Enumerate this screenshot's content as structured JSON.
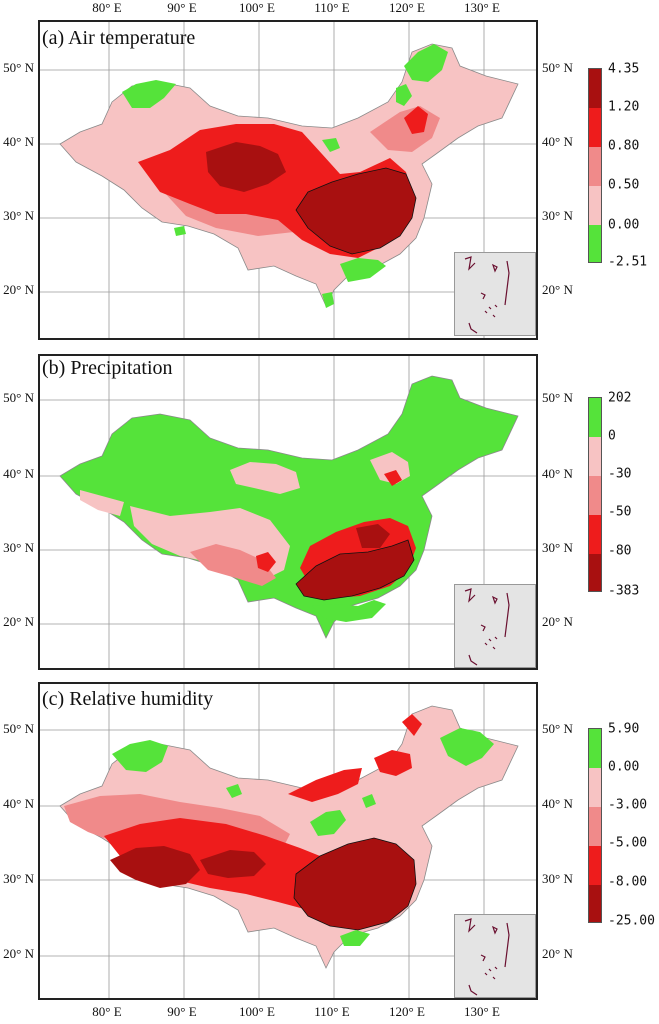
{
  "axes": {
    "lon_labels": [
      "80° E",
      "90° E",
      "100° E",
      "110° E",
      "120° E",
      "130° E"
    ],
    "lat_labels": [
      "50° N",
      "40° N",
      "30° N",
      "20° N"
    ]
  },
  "colors": {
    "green": "#55e33a",
    "light_pink": "#f7c3c3",
    "pink": "#f08a8a",
    "red": "#ee1c1c",
    "dark_red": "#a81010",
    "boundary": "#8a8a8a",
    "inset_bg": "#e4e4e4",
    "island": "#6a1030"
  },
  "panels": [
    {
      "title": "(a) Air temperature",
      "legend": [
        "4.35",
        "1.20",
        "0.80",
        "0.50",
        "0.00",
        "-2.51"
      ]
    },
    {
      "title": "(b) Precipitation",
      "legend": [
        "202",
        "0",
        "-30",
        "-50",
        "-80",
        "-383"
      ]
    },
    {
      "title": "(c) Relative humidity",
      "legend": [
        "5.90",
        "0.00",
        "-3.00",
        "-5.00",
        "-8.00",
        "-25.00"
      ]
    }
  ]
}
